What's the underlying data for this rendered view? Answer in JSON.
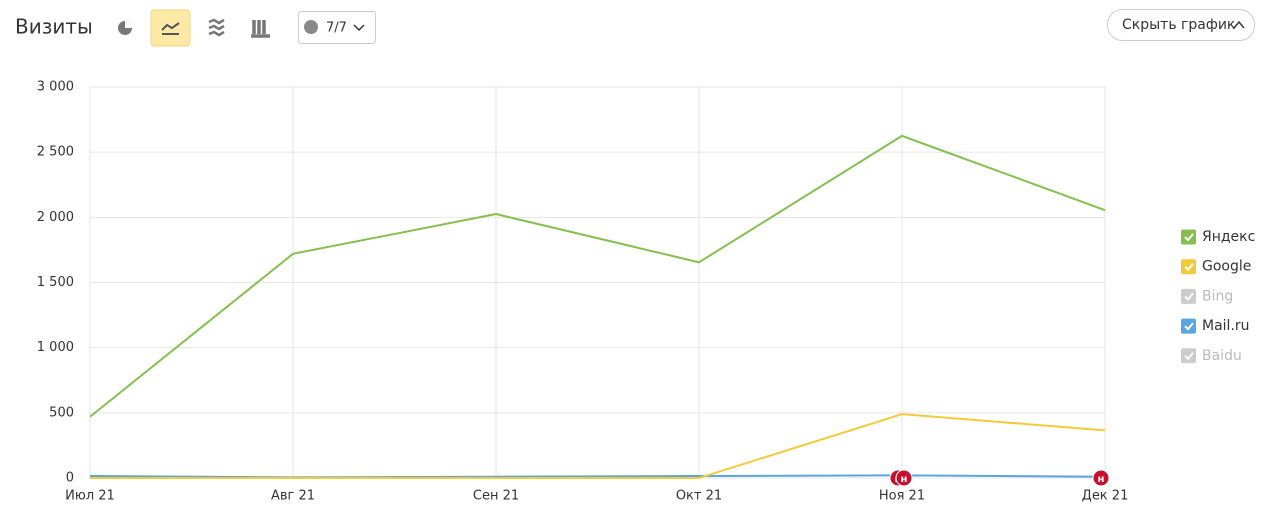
{
  "header": {
    "title": "Визиты",
    "comments": "7/7",
    "hide_button": "Скрыть график"
  },
  "chart_data": {
    "type": "line",
    "categories": [
      "Июл 21",
      "Авг 21",
      "Сен 21",
      "Окт 21",
      "Ноя 21",
      "Дек 21"
    ],
    "series": [
      {
        "name": "Яндекс",
        "color": "#86bf4f",
        "enabled": true,
        "values": [
          470,
          1720,
          2025,
          1655,
          2625,
          2055
        ]
      },
      {
        "name": "Google",
        "color": "#f3cb3a",
        "enabled": true,
        "values": [
          0,
          0,
          0,
          0,
          490,
          365
        ]
      },
      {
        "name": "Bing",
        "color": "#cccccc",
        "enabled": false
      },
      {
        "name": "Mail.ru",
        "color": "#5aa5e0",
        "enabled": true,
        "values": [
          15,
          5,
          10,
          15,
          20,
          10
        ]
      },
      {
        "name": "Baidu",
        "color": "#cccccc",
        "enabled": false
      }
    ],
    "ylim": [
      0,
      3000
    ],
    "yticks": [
      0,
      500,
      {
        "value": 1000,
        "label": "1 000"
      },
      {
        "value": 1500,
        "label": "1 500"
      },
      {
        "value": 2000,
        "label": "2 000"
      },
      {
        "value": 2500,
        "label": "2 500"
      },
      {
        "value": 3000,
        "label": "3 000"
      }
    ],
    "grid": true,
    "annotations": [
      {
        "category": "Ноя 21",
        "text": "н"
      },
      {
        "category": "Ноя 21",
        "text": "н"
      },
      {
        "category": "Дек 21",
        "text": "н"
      }
    ],
    "legend": "right"
  }
}
